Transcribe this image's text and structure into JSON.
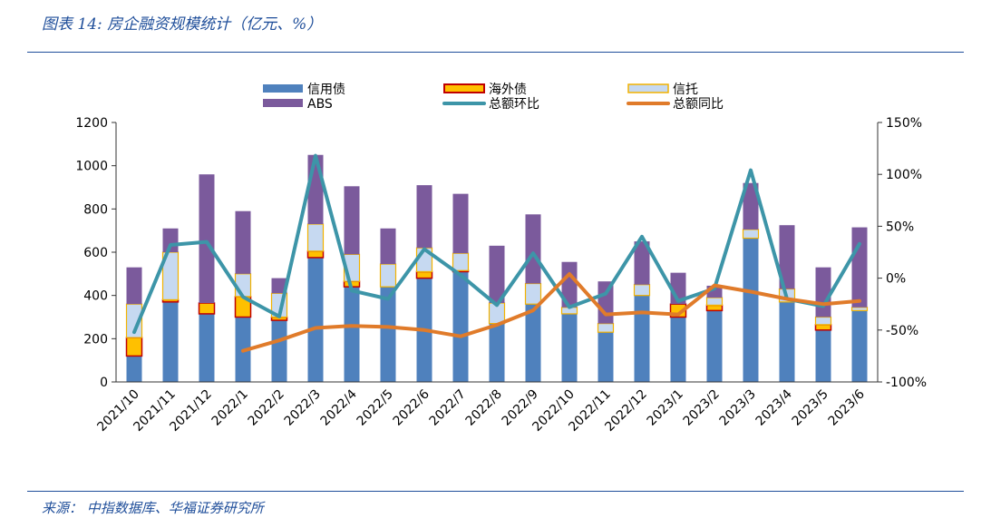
{
  "figure": {
    "title": "图表 14:  房企融资规模统计（亿元、%）",
    "source": "来源：  中指数据库、华福证券研究所"
  },
  "colors": {
    "credit": "#4f81bd",
    "overseas": "#ffc000",
    "overseas_border": "#c00000",
    "trust": "#c6d9f1",
    "trust_border": "#f2b200",
    "abs": "#7b5a9c",
    "mom": "#3d95a8",
    "yoy": "#e07b2a"
  },
  "chart_data": {
    "type": "bar",
    "categories": [
      "2021/10",
      "2021/11",
      "2021/12",
      "2022/1",
      "2022/2",
      "2022/3",
      "2022/4",
      "2022/5",
      "2022/6",
      "2022/7",
      "2022/8",
      "2022/9",
      "2022/10",
      "2022/11",
      "2022/12",
      "2023/1",
      "2023/2",
      "2023/3",
      "2023/4",
      "2023/5",
      "2023/6"
    ],
    "series": [
      {
        "name": "信用债",
        "kind": "stacked-bar",
        "values": [
          120,
          370,
          315,
          300,
          285,
          575,
          440,
          440,
          480,
          510,
          270,
          360,
          315,
          230,
          400,
          300,
          330,
          665,
          370,
          240,
          330
        ]
      },
      {
        "name": "海外债",
        "kind": "stacked-bar",
        "values": [
          85,
          10,
          50,
          95,
          15,
          30,
          25,
          0,
          30,
          5,
          0,
          0,
          0,
          0,
          0,
          60,
          25,
          0,
          0,
          25,
          0
        ]
      },
      {
        "name": "信托",
        "kind": "stacked-bar",
        "values": [
          155,
          220,
          0,
          105,
          110,
          125,
          125,
          105,
          110,
          80,
          95,
          95,
          30,
          40,
          50,
          0,
          35,
          40,
          60,
          35,
          15
        ]
      },
      {
        "name": "ABS",
        "kind": "stacked-bar",
        "values": [
          170,
          110,
          595,
          290,
          70,
          320,
          315,
          165,
          290,
          275,
          265,
          320,
          210,
          195,
          200,
          145,
          55,
          215,
          295,
          230,
          370
        ]
      },
      {
        "name": "总额环比",
        "kind": "line",
        "axis": "right",
        "values": [
          -52,
          32,
          35,
          -18,
          -37,
          118,
          -12,
          -20,
          28,
          3,
          -26,
          24,
          -28,
          -15,
          40,
          -22,
          -10,
          104,
          -20,
          -27,
          33
        ]
      },
      {
        "name": "总额同比",
        "kind": "line",
        "axis": "right",
        "values": [
          null,
          null,
          null,
          -70,
          -60,
          -48,
          -46,
          -47,
          -50,
          -56,
          -45,
          -31,
          4,
          -35,
          -33,
          -35,
          -7,
          -13,
          -20,
          -25,
          -22
        ]
      }
    ],
    "y_left": {
      "min": 0,
      "max": 1200,
      "ticks": [
        0,
        200,
        400,
        600,
        800,
        1000,
        1200
      ],
      "tick_labels": [
        "0",
        "200",
        "400",
        "600",
        "800",
        "1000",
        "1200"
      ]
    },
    "y_right": {
      "min": -100,
      "max": 150,
      "ticks": [
        -100,
        -50,
        0,
        50,
        100,
        150
      ],
      "tick_labels": [
        "-100%",
        "-50%",
        "0%",
        "50%",
        "100%",
        "150%"
      ]
    },
    "grid": false,
    "legend": "top",
    "xlabel": "",
    "ylabel": ""
  }
}
